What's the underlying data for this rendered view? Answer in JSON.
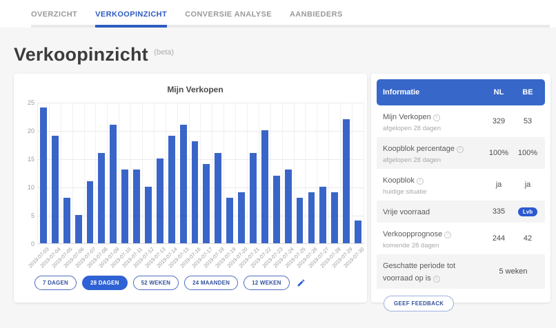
{
  "nav": {
    "tabs": [
      {
        "label": "OVERZICHT",
        "active": false
      },
      {
        "label": "VERKOOPINZICHT",
        "active": true
      },
      {
        "label": "CONVERSIE ANALYSE",
        "active": false
      },
      {
        "label": "AANBIEDERS",
        "active": false
      }
    ]
  },
  "page": {
    "title": "Verkoopinzicht",
    "beta_note": "(beta)"
  },
  "chart_data": {
    "type": "bar",
    "title": "Mijn Verkopen",
    "xlabel": "",
    "ylabel": "",
    "ylim": [
      0,
      25
    ],
    "yticks": [
      0,
      5,
      10,
      15,
      20,
      25
    ],
    "grid": true,
    "bar_color": "#3a65c8",
    "categories": [
      "2019-07-03",
      "2019-07-04",
      "2019-07-05",
      "2019-07-06",
      "2019-07-07",
      "2019-07-08",
      "2019-07-09",
      "2019-07-10",
      "2019-07-11",
      "2019-07-12",
      "2019-07-13",
      "2019-07-14",
      "2019-07-15",
      "2019-07-16",
      "2019-07-17",
      "2019-07-18",
      "2019-07-19",
      "2019-07-20",
      "2019-07-21",
      "2019-07-22",
      "2019-07-23",
      "2019-07-24",
      "2019-07-25",
      "2019-07-26",
      "2019-07-27",
      "2019-07-28",
      "2019-07-29",
      "2019-07-30"
    ],
    "values": [
      24,
      19,
      8,
      5,
      11,
      16,
      21,
      13,
      13,
      10,
      15,
      19,
      21,
      18,
      14,
      16,
      8,
      9,
      16,
      20,
      12,
      13,
      8,
      9,
      10,
      9,
      22,
      4
    ]
  },
  "filters": {
    "options": [
      {
        "label": "7 DAGEN",
        "active": false
      },
      {
        "label": "28 DAGEN",
        "active": true
      },
      {
        "label": "52 WEKEN",
        "active": false
      },
      {
        "label": "24 MAANDEN",
        "active": false
      },
      {
        "label": "12 WEKEN",
        "active": false
      }
    ],
    "edit_icon": "pencil"
  },
  "info_panel": {
    "header": {
      "title": "Informatie",
      "col_nl": "NL",
      "col_be": "BE"
    },
    "rows": [
      {
        "label": "Mijn Verkopen",
        "info": true,
        "sublabel": "afgelopen 28 dagen",
        "nl": "329",
        "be": "53",
        "shaded": false
      },
      {
        "label": "Koopblok percentage",
        "info": true,
        "sublabel": "afgelopen 28 dagen",
        "nl": "100%",
        "be": "100%",
        "shaded": true
      },
      {
        "label": "Koopblok",
        "info": true,
        "sublabel": "huidige situatie",
        "nl": "ja",
        "be": "ja",
        "shaded": false
      },
      {
        "label": "Vrije voorraad",
        "info": false,
        "sublabel": "",
        "nl": "335",
        "nl_badge": "Lvb",
        "be": "",
        "shaded": true
      },
      {
        "label": "Verkoopprognose",
        "info": true,
        "sublabel": "komende 28 dagen",
        "nl": "244",
        "be": "42",
        "shaded": false
      },
      {
        "label": "Geschatte periode tot voorraad op is",
        "info": true,
        "sublabel": "",
        "span_value": "5 weken",
        "shaded": true
      }
    ],
    "feedback_button": "GEEF FEEDBACK",
    "icons": {
      "info": "info-icon",
      "badge_color": "#2b59d0"
    }
  }
}
